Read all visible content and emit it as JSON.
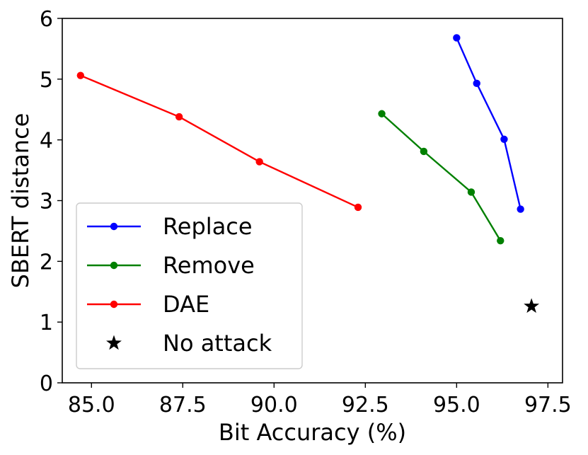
{
  "chart_data": {
    "type": "line",
    "xlabel": "Bit Accuracy (%)",
    "ylabel": "SBERT distance",
    "xlim": [
      84.2,
      97.9
    ],
    "ylim": [
      0,
      6
    ],
    "xticks": [
      85.0,
      87.5,
      90.0,
      92.5,
      95.0,
      97.5
    ],
    "xtick_labels": [
      "85.0",
      "87.5",
      "90.0",
      "92.5",
      "95.0",
      "97.5"
    ],
    "yticks": [
      0,
      1,
      2,
      3,
      4,
      5,
      6
    ],
    "ytick_labels": [
      "0",
      "1",
      "2",
      "3",
      "4",
      "5",
      "6"
    ],
    "grid": false,
    "legend_position": "lower-left",
    "series": [
      {
        "name": "Replace",
        "color": "#0000ff",
        "marker": "circle",
        "x": [
          95.0,
          95.55,
          96.3,
          96.75
        ],
        "y": [
          5.68,
          4.93,
          4.01,
          2.86
        ]
      },
      {
        "name": "Remove",
        "color": "#008000",
        "marker": "circle",
        "x": [
          92.95,
          94.1,
          95.4,
          96.2
        ],
        "y": [
          4.43,
          3.81,
          3.14,
          2.34
        ]
      },
      {
        "name": "DAE",
        "color": "#ff0000",
        "marker": "circle",
        "x": [
          84.7,
          87.4,
          89.6,
          92.3
        ],
        "y": [
          5.06,
          4.38,
          3.64,
          2.89
        ]
      },
      {
        "name": "No attack",
        "color": "#000000",
        "marker": "star",
        "x": [
          97.05
        ],
        "y": [
          1.26
        ]
      }
    ]
  }
}
